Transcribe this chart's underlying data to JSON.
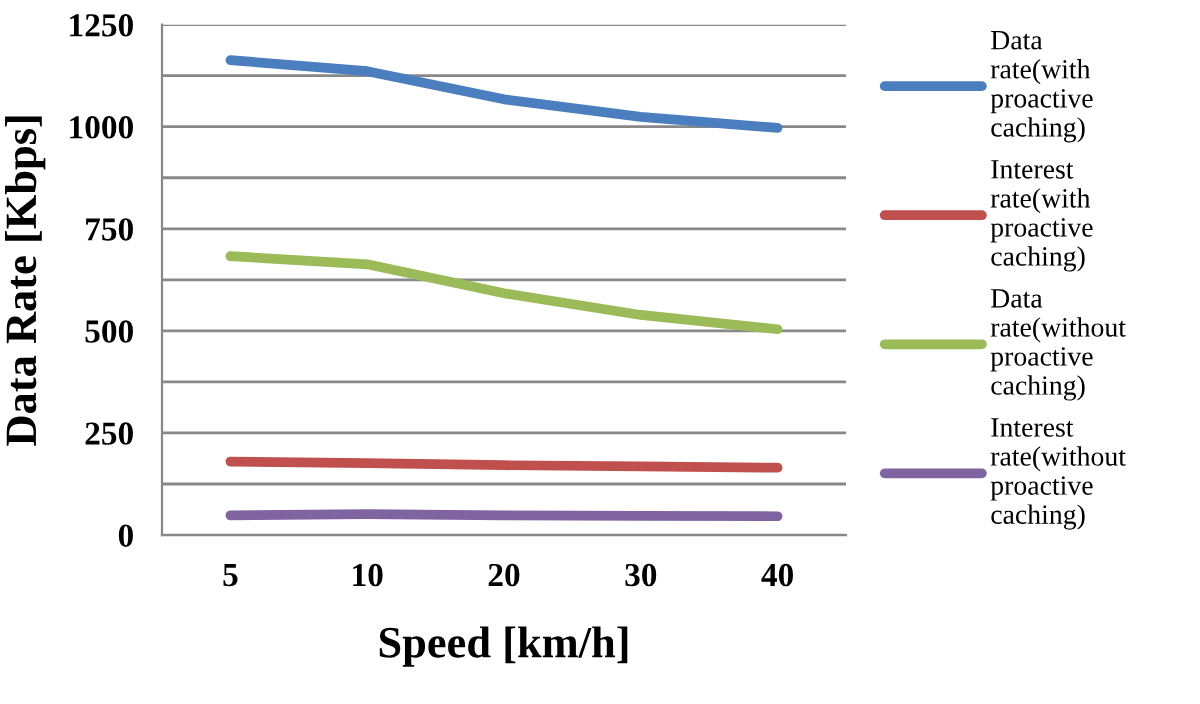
{
  "chart_data": {
    "type": "line",
    "xlabel": "Speed [km/h]",
    "ylabel": "Data Rate [Kbps]",
    "categories": [
      "5",
      "10",
      "20",
      "30",
      "40"
    ],
    "series": [
      {
        "name": "Data rate(with proactive caching)",
        "color": "#4a7ebf",
        "values": [
          1163,
          1136,
          1067,
          1024,
          997
        ]
      },
      {
        "name": "Interest rate(with proactive caching)",
        "color": "#c0504d",
        "values": [
          180,
          176,
          171,
          168,
          165
        ]
      },
      {
        "name": "Data rate(without proactive caching)",
        "color": "#9bbb59",
        "values": [
          683,
          663,
          592,
          539,
          504
        ]
      },
      {
        "name": "Interest rate(without proactive caching)",
        "color": "#8064a2",
        "values": [
          48,
          51,
          48,
          47,
          46
        ]
      }
    ],
    "ylim": [
      0,
      1250
    ],
    "yticks": [
      0,
      {
        "value": 125,
        "label": null
      },
      250,
      {
        "value": 375,
        "label": null
      },
      500,
      {
        "value": 625,
        "label": null
      },
      750,
      {
        "value": 875,
        "label": null
      },
      1000,
      {
        "value": 1125,
        "label": null
      },
      1250
    ],
    "grid": "y",
    "legend": "right",
    "marker": "none",
    "line_style": "solid"
  }
}
